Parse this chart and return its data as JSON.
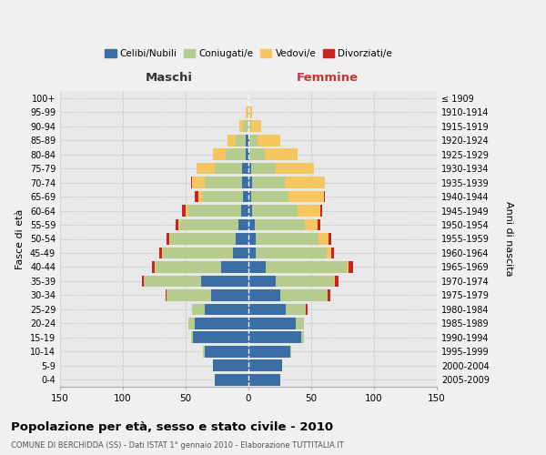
{
  "age_groups": [
    "0-4",
    "5-9",
    "10-14",
    "15-19",
    "20-24",
    "25-29",
    "30-34",
    "35-39",
    "40-44",
    "45-49",
    "50-54",
    "55-59",
    "60-64",
    "65-69",
    "70-74",
    "75-79",
    "80-84",
    "85-89",
    "90-94",
    "95-99",
    "100+"
  ],
  "birth_years": [
    "2005-2009",
    "2000-2004",
    "1995-1999",
    "1990-1994",
    "1985-1989",
    "1980-1984",
    "1975-1979",
    "1970-1974",
    "1965-1969",
    "1960-1964",
    "1955-1959",
    "1950-1954",
    "1945-1949",
    "1940-1944",
    "1935-1939",
    "1930-1934",
    "1925-1929",
    "1920-1924",
    "1915-1919",
    "1910-1914",
    "≤ 1909"
  ],
  "colors": {
    "celibi": "#3a6ea5",
    "coniugati": "#b5cc8e",
    "vedovi": "#f5c560",
    "divorziati": "#cc2222"
  },
  "males": {
    "celibi": [
      27,
      28,
      35,
      44,
      43,
      35,
      30,
      38,
      22,
      12,
      10,
      8,
      6,
      4,
      5,
      5,
      2,
      2,
      0,
      0,
      0
    ],
    "coniugati": [
      0,
      0,
      1,
      2,
      5,
      10,
      35,
      45,
      52,
      56,
      52,
      46,
      42,
      32,
      30,
      22,
      16,
      8,
      4,
      1,
      0
    ],
    "vedovi": [
      0,
      0,
      0,
      0,
      0,
      0,
      0,
      0,
      1,
      1,
      1,
      2,
      2,
      4,
      10,
      14,
      10,
      7,
      3,
      1,
      0
    ],
    "divorziati": [
      0,
      0,
      0,
      0,
      0,
      0,
      1,
      2,
      2,
      2,
      2,
      2,
      3,
      3,
      1,
      0,
      0,
      0,
      0,
      0,
      0
    ]
  },
  "females": {
    "nubili": [
      25,
      27,
      33,
      42,
      38,
      30,
      25,
      22,
      14,
      6,
      6,
      5,
      3,
      2,
      3,
      2,
      1,
      1,
      0,
      0,
      0
    ],
    "coniugate": [
      0,
      0,
      1,
      2,
      6,
      16,
      38,
      46,
      64,
      56,
      50,
      40,
      36,
      30,
      26,
      20,
      12,
      6,
      2,
      1,
      0
    ],
    "vedove": [
      0,
      0,
      0,
      0,
      0,
      0,
      0,
      1,
      2,
      4,
      8,
      10,
      18,
      28,
      32,
      30,
      26,
      18,
      8,
      2,
      0
    ],
    "divorziate": [
      0,
      0,
      0,
      0,
      0,
      1,
      2,
      3,
      3,
      2,
      2,
      2,
      2,
      1,
      0,
      0,
      0,
      0,
      0,
      0,
      0
    ]
  },
  "title": "Popolazione per età, sesso e stato civile - 2010",
  "subtitle": "COMUNE DI BERCHIDDA (SS) - Dati ISTAT 1° gennaio 2010 - Elaborazione TUTTITALIA.IT",
  "label_maschi": "Maschi",
  "label_femmine": "Femmine",
  "ylabel_left": "Fasce di età",
  "ylabel_right": "Anni di nascita",
  "xlim": 150,
  "bg_color": "#f0f0f0",
  "grid_color": "#cccccc",
  "legend_labels": [
    "Celibi/Nubili",
    "Coniugati/e",
    "Vedovi/e",
    "Divorziati/e"
  ]
}
